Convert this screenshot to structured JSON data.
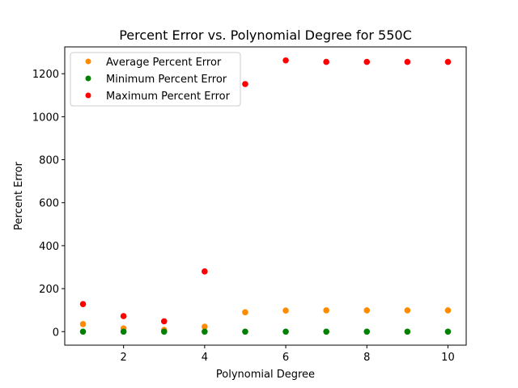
{
  "chart_data": {
    "type": "scatter",
    "title": "Percent Error vs. Polynomial Degree for 550C",
    "xlabel": "Polynomial Degree",
    "ylabel": "Percent Error",
    "xlim": [
      0.55,
      10.45
    ],
    "ylim": [
      -63,
      1325
    ],
    "xticks": [
      2,
      4,
      6,
      8,
      10
    ],
    "yticks": [
      0,
      200,
      400,
      600,
      800,
      1000,
      1200
    ],
    "grid": false,
    "legend_position": "upper-left",
    "series": [
      {
        "name": "Average Percent Error",
        "color": "#ff8c00",
        "x": [
          1,
          2,
          3,
          4,
          5,
          6,
          7,
          8,
          9,
          10
        ],
        "y": [
          35,
          15,
          8,
          23,
          90,
          98,
          99,
          99,
          99,
          99
        ]
      },
      {
        "name": "Minimum Percent Error",
        "color": "#008000",
        "x": [
          1,
          2,
          3,
          4,
          5,
          6,
          7,
          8,
          9,
          10
        ],
        "y": [
          0,
          0,
          0,
          0,
          0,
          0,
          0,
          0,
          0,
          0
        ]
      },
      {
        "name": "Maximum Percent Error",
        "color": "#ff0000",
        "x": [
          1,
          2,
          3,
          4,
          5,
          6,
          7,
          8,
          9,
          10
        ],
        "y": [
          128,
          72,
          48,
          280,
          1152,
          1262,
          1255,
          1255,
          1255,
          1255
        ]
      }
    ]
  }
}
